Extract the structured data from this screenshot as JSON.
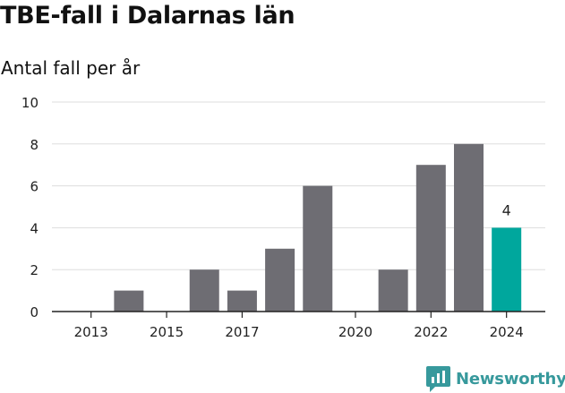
{
  "title": "TBE-fall i Dalarnas län",
  "subtitle": "Antal fall per år",
  "brand": {
    "name": "Newsworthy",
    "logo": "newsworthy-logo-icon"
  },
  "colors": {
    "bar": "#6e6d73",
    "highlight": "#00a79d",
    "grid": "#dddddd",
    "axis": "#222222",
    "text": "#222222",
    "brand": "#37999c"
  },
  "chart_data": {
    "type": "bar",
    "title": "TBE-fall i Dalarnas län",
    "subtitle": "Antal fall per år",
    "xlabel": "",
    "ylabel": "",
    "x": [
      2013,
      2014,
      2015,
      2016,
      2017,
      2018,
      2019,
      2020,
      2021,
      2022,
      2023,
      2024
    ],
    "values": [
      0,
      1,
      0,
      2,
      1,
      3,
      6,
      0,
      2,
      7,
      8,
      4
    ],
    "x_ticks": [
      "2013",
      "2015",
      "2017",
      "2020",
      "2022",
      "2024"
    ],
    "y_ticks": [
      0,
      2,
      4,
      6,
      8,
      10
    ],
    "ylim": [
      0,
      10
    ],
    "grid": true,
    "highlight": {
      "category": 2024,
      "label": "4"
    }
  }
}
